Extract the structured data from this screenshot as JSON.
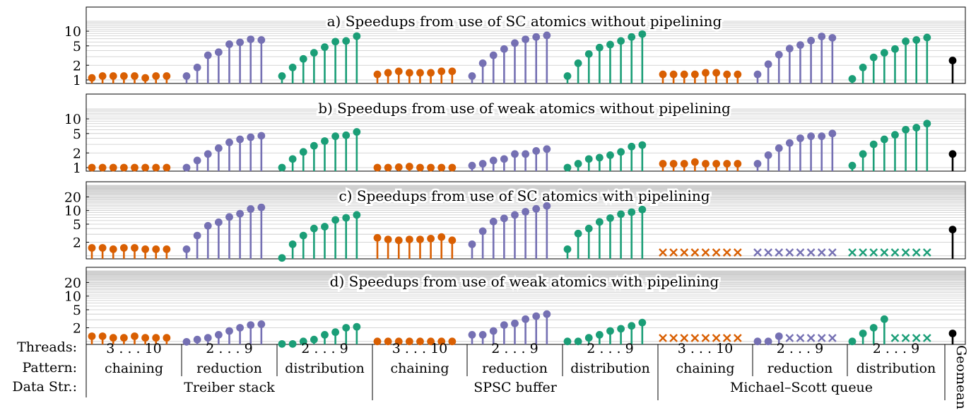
{
  "colors": {
    "chaining": "#d95f02",
    "reduction": "#7570b3",
    "distribution": "#1b9e77",
    "geomean": "#000000",
    "grid": "#c8c8c8"
  },
  "x_axis": {
    "row_labels": [
      "Threads:",
      "Pattern:",
      "Data Str.:"
    ],
    "groups": [
      {
        "name": "Treiber stack",
        "patterns": [
          {
            "pattern": "chaining",
            "threads": "3 . . . 10"
          },
          {
            "pattern": "reduction",
            "threads": "2 . . . 9"
          },
          {
            "pattern": "distribution",
            "threads": "2 . . . 9"
          }
        ]
      },
      {
        "name": "SPSC buffer",
        "patterns": [
          {
            "pattern": "chaining",
            "threads": "3 . . . 10"
          },
          {
            "pattern": "reduction",
            "threads": "2 . . . 9"
          },
          {
            "pattern": "distribution",
            "threads": "2 . . . 9"
          }
        ]
      },
      {
        "name": "Michael–Scott queue",
        "patterns": [
          {
            "pattern": "chaining",
            "threads": "3 . . . 10"
          },
          {
            "pattern": "reduction",
            "threads": "2 . . . 9"
          },
          {
            "pattern": "distribution",
            "threads": "2 . . . 9"
          }
        ]
      }
    ],
    "geomean_label": "Geomean"
  },
  "chart_data": [
    {
      "type": "lollipop",
      "title": "a) Speedups from use of SC atomics without pipelining",
      "yscale": "log",
      "ylim": [
        1,
        16
      ],
      "yticks": [
        1,
        2,
        5,
        10
      ],
      "series": [
        {
          "name": "Treiber stack / chaining",
          "values": [
            1.1,
            1.2,
            1.2,
            1.2,
            1.2,
            1.1,
            1.2,
            1.2
          ]
        },
        {
          "name": "Treiber stack / reduction",
          "values": [
            1.2,
            1.8,
            3.2,
            3.7,
            5.4,
            5.9,
            6.8,
            6.6
          ]
        },
        {
          "name": "Treiber stack / distribution",
          "values": [
            1.2,
            1.8,
            2.7,
            3.6,
            4.7,
            6.1,
            6.3,
            7.9
          ]
        },
        {
          "name": "SPSC buffer / chaining",
          "values": [
            1.3,
            1.4,
            1.5,
            1.4,
            1.4,
            1.4,
            1.5,
            1.5
          ]
        },
        {
          "name": "SPSC buffer / reduction",
          "values": [
            1.2,
            2.2,
            3.2,
            4.3,
            5.7,
            6.8,
            7.6,
            8.2
          ]
        },
        {
          "name": "SPSC buffer / distribution",
          "values": [
            1.2,
            2.2,
            3.4,
            4.6,
            5.3,
            6.3,
            7.6,
            8.7
          ]
        },
        {
          "name": "Michael–Scott queue / chaining",
          "values": [
            1.3,
            1.3,
            1.3,
            1.3,
            1.4,
            1.4,
            1.3,
            1.3
          ]
        },
        {
          "name": "Michael–Scott queue / reduction",
          "values": [
            1.3,
            2.1,
            3.3,
            4.4,
            5.2,
            6.4,
            7.8,
            7.3
          ]
        },
        {
          "name": "Michael–Scott queue / distribution",
          "values": [
            1.05,
            1.8,
            2.9,
            3.6,
            4.3,
            6.2,
            6.6,
            7.4
          ]
        },
        {
          "name": "Geomean",
          "values": [
            2.5
          ]
        }
      ]
    },
    {
      "type": "lollipop",
      "title": "b) Speedups from use of weak atomics without pipelining",
      "yscale": "log",
      "ylim": [
        1,
        16
      ],
      "yticks": [
        1,
        2,
        5,
        10
      ],
      "series": [
        {
          "name": "Treiber stack / chaining",
          "values": [
            1.0,
            1.0,
            1.0,
            1.0,
            1.0,
            1.0,
            1.0,
            1.0
          ]
        },
        {
          "name": "Treiber stack / reduction",
          "values": [
            1.0,
            1.4,
            1.9,
            2.5,
            3.3,
            3.8,
            4.2,
            4.5
          ]
        },
        {
          "name": "Treiber stack / distribution",
          "values": [
            1.0,
            1.5,
            2.1,
            2.8,
            3.5,
            4.4,
            4.6,
            5.4
          ]
        },
        {
          "name": "SPSC buffer / chaining",
          "values": [
            0.98,
            0.98,
            1.02,
            1.05,
            1.0,
            1.0,
            1.0,
            1.0
          ]
        },
        {
          "name": "SPSC buffer / reduction",
          "values": [
            1.1,
            1.2,
            1.4,
            1.5,
            1.9,
            1.9,
            2.2,
            2.4
          ]
        },
        {
          "name": "SPSC buffer / distribution",
          "values": [
            0.98,
            1.2,
            1.5,
            1.6,
            1.8,
            2.1,
            2.7,
            2.9
          ]
        },
        {
          "name": "Michael–Scott queue / chaining",
          "values": [
            1.2,
            1.2,
            1.2,
            1.3,
            1.2,
            1.2,
            1.2,
            1.2
          ]
        },
        {
          "name": "Michael–Scott queue / reduction",
          "values": [
            1.2,
            1.8,
            2.5,
            3.2,
            4.0,
            4.4,
            4.4,
            5.0
          ]
        },
        {
          "name": "Michael–Scott queue / distribution",
          "values": [
            1.1,
            1.9,
            3.0,
            3.8,
            4.7,
            6.0,
            6.6,
            8.0
          ]
        },
        {
          "name": "Geomean",
          "values": [
            1.9
          ]
        }
      ]
    },
    {
      "type": "lollipop",
      "title": "c) Speedups from use of SC atomics with pipelining",
      "yscale": "log",
      "ylim": [
        0.8,
        36
      ],
      "yticks": [
        2,
        5,
        10,
        20
      ],
      "missing_marker": "× = no result (Michael–Scott queue)",
      "series": [
        {
          "name": "Treiber stack / chaining",
          "values": [
            1.5,
            1.5,
            1.4,
            1.5,
            1.5,
            1.4,
            1.4,
            1.4
          ]
        },
        {
          "name": "Treiber stack / reduction",
          "values": [
            1.4,
            2.8,
            4.6,
            5.5,
            7.2,
            8.5,
            10.8,
            11.7
          ]
        },
        {
          "name": "Treiber stack / distribution",
          "values": [
            0.9,
            1.8,
            2.8,
            4.0,
            4.4,
            6.2,
            6.9,
            8.0
          ]
        },
        {
          "name": "SPSC buffer / chaining",
          "values": [
            2.5,
            2.3,
            2.2,
            2.3,
            2.3,
            2.4,
            2.6,
            2.2
          ]
        },
        {
          "name": "SPSC buffer / reduction",
          "values": [
            1.8,
            3.5,
            5.7,
            6.7,
            8.0,
            9.4,
            10.9,
            12.6
          ]
        },
        {
          "name": "SPSC buffer / distribution",
          "values": [
            1.4,
            3.1,
            4.0,
            5.6,
            6.8,
            8.3,
            9.2,
            10.5
          ]
        },
        {
          "name": "Michael–Scott queue / chaining",
          "values": [
            null,
            null,
            null,
            null,
            null,
            null,
            null,
            null
          ]
        },
        {
          "name": "Michael–Scott queue / reduction",
          "values": [
            null,
            null,
            null,
            null,
            null,
            null,
            null,
            null
          ]
        },
        {
          "name": "Michael–Scott queue / distribution",
          "values": [
            null,
            null,
            null,
            null,
            null,
            null,
            null,
            null
          ]
        },
        {
          "name": "Geomean",
          "values": [
            3.8
          ]
        }
      ]
    },
    {
      "type": "lollipop",
      "title": "d) Speedups from use of weak atomics with pipelining",
      "yscale": "log",
      "ylim": [
        0.8,
        36
      ],
      "yticks": [
        2,
        5,
        10,
        20
      ],
      "missing_marker": "× = no result",
      "series": [
        {
          "name": "Treiber stack / chaining",
          "values": [
            1.3,
            1.3,
            1.2,
            1.2,
            1.3,
            1.2,
            1.2,
            1.2
          ]
        },
        {
          "name": "Treiber stack / reduction",
          "values": [
            0.98,
            1.1,
            1.2,
            1.4,
            1.7,
            2.0,
            2.3,
            2.4
          ]
        },
        {
          "name": "Treiber stack / distribution",
          "values": [
            0.88,
            0.88,
            1.0,
            1.1,
            1.4,
            1.6,
            2.0,
            2.1
          ]
        },
        {
          "name": "SPSC buffer / chaining",
          "values": [
            1.0,
            1.0,
            1.0,
            1.0,
            1.0,
            1.0,
            1.0,
            1.0
          ]
        },
        {
          "name": "SPSC buffer / reduction",
          "values": [
            1.4,
            1.4,
            1.7,
            2.3,
            2.5,
            3.1,
            3.6,
            4.0
          ]
        },
        {
          "name": "SPSC buffer / distribution",
          "values": [
            1.0,
            1.0,
            1.2,
            1.4,
            1.7,
            1.9,
            2.2,
            2.6
          ]
        },
        {
          "name": "Michael–Scott queue / chaining",
          "values": [
            null,
            null,
            null,
            null,
            null,
            null,
            null,
            null
          ]
        },
        {
          "name": "Michael–Scott queue / reduction",
          "values": [
            1.0,
            1.0,
            1.3,
            null,
            null,
            null,
            null,
            null
          ]
        },
        {
          "name": "Michael–Scott queue / distribution",
          "values": [
            1.0,
            1.5,
            2.0,
            3.1,
            null,
            null,
            null,
            null
          ]
        },
        {
          "name": "Geomean",
          "values": [
            1.5
          ]
        }
      ]
    }
  ]
}
